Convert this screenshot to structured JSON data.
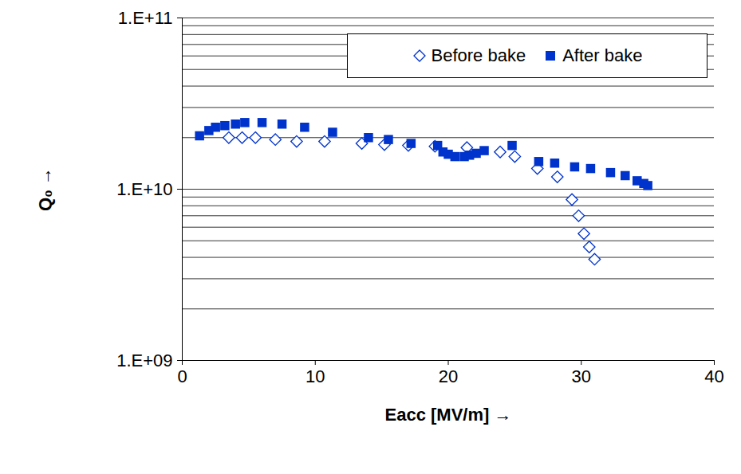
{
  "chart_data": {
    "type": "scatter",
    "x_label": "Eacc [MV/m]",
    "y_label": "Q₀",
    "log": "y",
    "grid": true,
    "legend": "top-right",
    "xlim": [
      0,
      40
    ],
    "xticks": [
      0,
      10,
      20,
      30,
      40
    ],
    "ylim": [
      1000000000,
      100000000000
    ],
    "yticks": [
      {
        "value": 1000000000,
        "label": "1.E+09"
      },
      {
        "value": 10000000000,
        "label": "1.E+10"
      },
      {
        "value": 100000000000,
        "label": "1.E+11"
      }
    ],
    "series": [
      {
        "name": "Before bake",
        "color": "#0033cc",
        "marker": "diamond-open",
        "x": [
          3.5,
          4.5,
          5.5,
          7,
          8.6,
          10.7,
          13.5,
          15.2,
          17,
          19,
          21.4,
          23.9,
          25,
          26.7,
          28.2,
          29.3,
          29.8,
          30.2,
          30.6,
          31
        ],
        "values": [
          20000000000,
          20000000000,
          20000000000,
          19500000000,
          19000000000,
          19000000000,
          18500000000,
          18200000000,
          18000000000,
          17800000000,
          17500000000,
          16500000000,
          15500000000,
          13200000000,
          11800000000,
          8700000000,
          7000000000,
          5500000000,
          4600000000,
          3900000000
        ]
      },
      {
        "name": "After bake",
        "color": "#0033cc",
        "marker": "square",
        "x": [
          1.3,
          2,
          2.5,
          3.2,
          4,
          4.7,
          6,
          7.5,
          9.2,
          11.3,
          14,
          15.5,
          17.2,
          19.2,
          19.6,
          20,
          20.5,
          21.2,
          21.6,
          22.1,
          22.7,
          24.8,
          26.8,
          28,
          29.5,
          30.7,
          32.2,
          33.3,
          34.2,
          34.7,
          35
        ],
        "values": [
          20500000000,
          22000000000,
          23000000000,
          23500000000,
          24000000000,
          24500000000,
          24500000000,
          24000000000,
          23000000000,
          21500000000,
          20000000000,
          19500000000,
          18500000000,
          18000000000,
          16500000000,
          16000000000,
          15500000000,
          15500000000,
          15800000000,
          16200000000,
          16800000000,
          18000000000,
          14500000000,
          14200000000,
          13500000000,
          13200000000,
          12500000000,
          12000000000,
          11200000000,
          10800000000,
          10500000000
        ]
      }
    ]
  }
}
